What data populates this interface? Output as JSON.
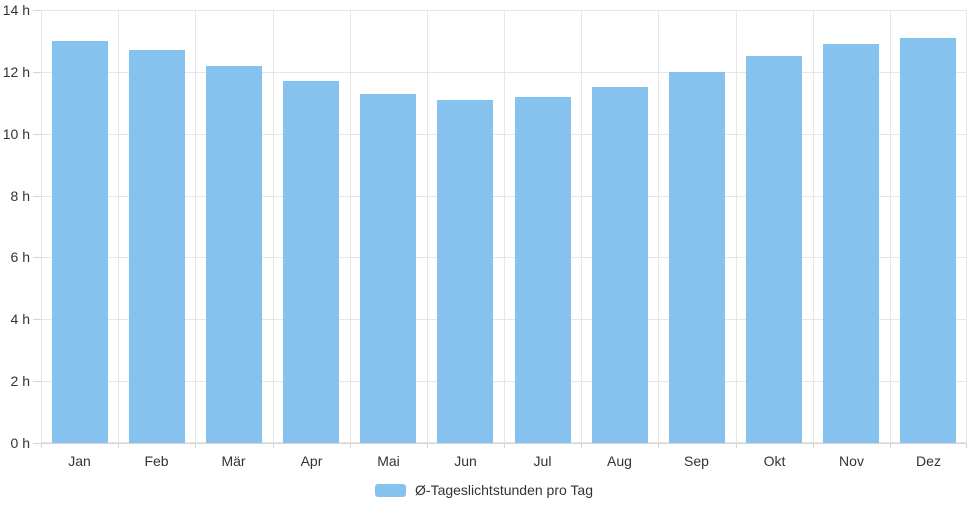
{
  "chart_data": {
    "type": "bar",
    "title": "",
    "xlabel": "",
    "ylabel": "",
    "categories": [
      "Jan",
      "Feb",
      "Mär",
      "Apr",
      "Mai",
      "Jun",
      "Jul",
      "Aug",
      "Sep",
      "Okt",
      "Nov",
      "Dez"
    ],
    "values": [
      13.0,
      12.7,
      12.2,
      11.7,
      11.3,
      11.1,
      11.2,
      11.5,
      12.0,
      12.5,
      12.9,
      13.1
    ],
    "series_name": "Ø-Tageslichtstunden pro Tag",
    "ylim": [
      0,
      14
    ],
    "y_tick_values": [
      0,
      2,
      4,
      6,
      8,
      10,
      12,
      14
    ],
    "y_tick_labels": [
      "0 h",
      "2 h",
      "4 h",
      "6 h",
      "8 h",
      "10 h",
      "12 h",
      "14 h"
    ],
    "grid": true,
    "legend_position": "bottom"
  },
  "legend": {
    "label": "Ø-Tageslichtstunden pro Tag"
  },
  "colors": {
    "bar": "#85c2ee",
    "gridline": "#e6e6e6",
    "axis": "#d4d4d4",
    "text": "#333333"
  }
}
